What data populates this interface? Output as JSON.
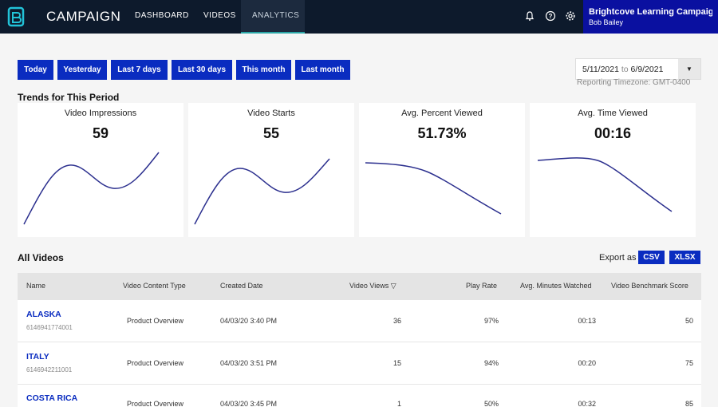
{
  "app": {
    "brand": "CAMPAIGN",
    "nav": [
      {
        "label": "DASHBOARD"
      },
      {
        "label": "VIDEOS"
      },
      {
        "label": "ANALYTICS",
        "active": true
      }
    ],
    "icons": [
      "bell-icon",
      "help-icon",
      "gear-icon"
    ],
    "account_name": "Brightcove Learning Campaign",
    "account_user": "Bob Bailey",
    "colors": {
      "topbar": "#0d1a2c",
      "account_bg": "#0a10a0",
      "accent": "#0a2cc0",
      "line": "#2b2f8e"
    }
  },
  "range_buttons": [
    "Today",
    "Yesterday",
    "Last 7 days",
    "Last 30 days",
    "This month",
    "Last month"
  ],
  "date_range": {
    "start": "5/11/2021",
    "to": "to",
    "end": "6/9/2021",
    "timezone": "Reporting Timezone: GMT-0400"
  },
  "trends": {
    "title": "Trends for This Period",
    "cards": [
      {
        "title": "Video Impressions",
        "value": "59"
      },
      {
        "title": "Video Starts",
        "value": "55"
      },
      {
        "title": "Avg. Percent Viewed",
        "value": "51.73%"
      },
      {
        "title": "Avg. Time Viewed",
        "value": "00:16"
      }
    ]
  },
  "videos": {
    "title": "All Videos",
    "export_label": "Export as",
    "export_buttons": [
      "CSV",
      "XLSX"
    ],
    "columns": [
      "Name",
      "Video Content Type",
      "Created Date",
      "Video Views",
      "Play Rate",
      "Avg. Minutes Watched",
      "Video Benchmark Score"
    ],
    "sort_indicator": "▽",
    "rows": [
      {
        "name": "ALASKA",
        "id": "6146941774001",
        "type": "Product Overview",
        "created": "04/03/20 3:40 PM",
        "views": "36",
        "play_rate": "97%",
        "avg_minutes": "00:13",
        "score": "50"
      },
      {
        "name": "ITALY",
        "id": "6146942211001",
        "type": "Product Overview",
        "created": "04/03/20 3:51 PM",
        "views": "15",
        "play_rate": "94%",
        "avg_minutes": "00:20",
        "score": "75"
      },
      {
        "name": "COSTA RICA",
        "id": "",
        "type": "Product Overview",
        "created": "04/03/20 3:45 PM",
        "views": "1",
        "play_rate": "50%",
        "avg_minutes": "00:32",
        "score": "85"
      }
    ]
  }
}
